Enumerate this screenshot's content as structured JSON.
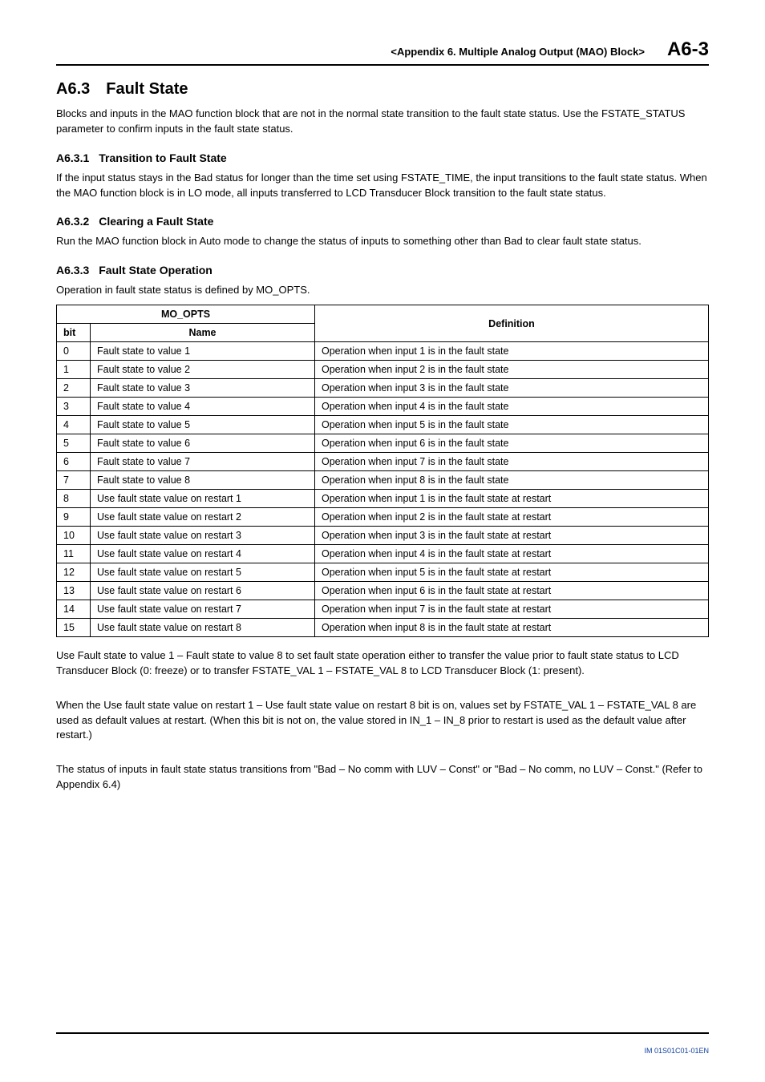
{
  "header": {
    "section_title": "<Appendix 6.  Multiple Analog Output (MAO) Block>",
    "page_number": "A6-3"
  },
  "section": {
    "number": "A6.3",
    "title": "Fault State",
    "intro": "Blocks and inputs in the MAO function block that are not in the normal state transition to the fault state status. Use the FSTATE_STATUS parameter to confirm inputs in the fault state status."
  },
  "sub1": {
    "number": "A6.3.1",
    "title": "Transition to Fault State",
    "text": "If the input status stays in the Bad status for longer than the time set using FSTATE_TIME, the input transitions to the fault state status. When the MAO function block is in LO mode, all inputs transferred to LCD Transducer Block transition to the fault state status."
  },
  "sub2": {
    "number": "A6.3.2",
    "title": "Clearing a Fault State",
    "text": "Run the MAO function block in Auto mode to change the status of inputs to something other than Bad to clear fault state status."
  },
  "sub3": {
    "number": "A6.3.3",
    "title": "Fault State Operation",
    "intro": "Operation in fault state status is defined by MO_OPTS."
  },
  "table": {
    "headers": {
      "mo_opts": "MO_OPTS",
      "bit": "bit",
      "name": "Name",
      "definition": "Definition"
    },
    "rows": [
      {
        "bit": "0",
        "name": "Fault state to value 1",
        "def": "Operation when input 1 is in the fault state"
      },
      {
        "bit": "1",
        "name": "Fault state to value 2",
        "def": "Operation when input 2 is in the fault state"
      },
      {
        "bit": "2",
        "name": "Fault state to value 3",
        "def": "Operation when input 3 is in the fault state"
      },
      {
        "bit": "3",
        "name": "Fault state to value 4",
        "def": "Operation when input 4 is in the fault state"
      },
      {
        "bit": "4",
        "name": "Fault state to value 5",
        "def": "Operation when input 5 is in the fault state"
      },
      {
        "bit": "5",
        "name": "Fault state to value 6",
        "def": "Operation when input 6 is in the fault state"
      },
      {
        "bit": "6",
        "name": "Fault state to value 7",
        "def": "Operation when input 7 is in the fault state"
      },
      {
        "bit": "7",
        "name": "Fault state to value 8",
        "def": "Operation when input 8 is in the fault state"
      },
      {
        "bit": "8",
        "name": "Use fault state value on restart 1",
        "def": "Operation when input 1 is in the fault state at restart"
      },
      {
        "bit": "9",
        "name": "Use fault state value on restart 2",
        "def": "Operation when input 2 is in the fault state at restart"
      },
      {
        "bit": "10",
        "name": "Use fault state value on restart 3",
        "def": "Operation when input 3 is in the fault state at restart"
      },
      {
        "bit": "11",
        "name": "Use fault state value on restart 4",
        "def": "Operation when input 4 is in the fault state at restart"
      },
      {
        "bit": "12",
        "name": "Use fault state value on restart 5",
        "def": "Operation when input 5 is in the fault state at restart"
      },
      {
        "bit": "13",
        "name": "Use fault state value on restart 6",
        "def": "Operation when input 6 is in the fault state at restart"
      },
      {
        "bit": "14",
        "name": "Use fault state value on restart 7",
        "def": "Operation when input 7 is in the fault state at restart"
      },
      {
        "bit": "15",
        "name": "Use fault state value on restart 8",
        "def": "Operation when input 8 is in the fault state at restart"
      }
    ]
  },
  "notes": {
    "p1": "Use Fault state to value 1 – Fault state to value 8 to set fault state operation either to transfer the value prior to fault state status to LCD Transducer Block (0: freeze) or to transfer FSTATE_VAL 1 – FSTATE_VAL 8 to LCD Transducer Block (1: present).",
    "p2": "When the Use fault state value on restart 1 – Use fault state value on restart 8 bit is on, values set by FSTATE_VAL 1 – FSTATE_VAL 8 are used as default values at restart. (When this bit is not on, the value stored in IN_1 – IN_8 prior to restart is used as the default value after restart.)",
    "p3": "The status of inputs in fault state status transitions from \"Bad – No comm with LUV – Const\" or \"Bad – No comm, no LUV – Const.\" (Refer to Appendix 6.4)"
  },
  "footer": {
    "code": "IM 01S01C01-01EN"
  }
}
